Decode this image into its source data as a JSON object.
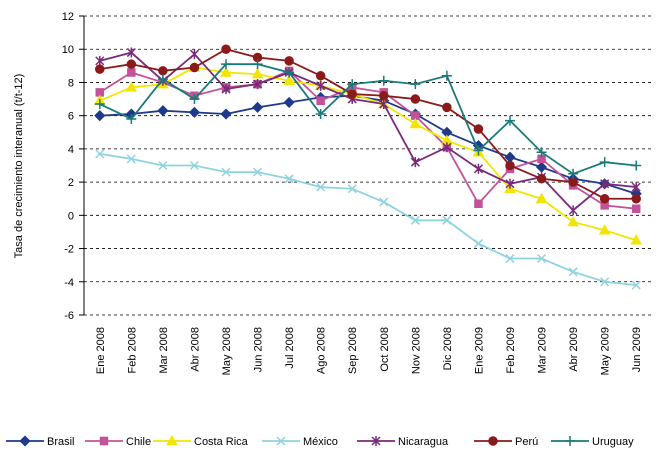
{
  "chart_data": {
    "type": "line",
    "y_label": "Tasa de crecimiento interanual (t/t-12)",
    "categories": [
      "Ene 2008",
      "Feb 2008",
      "Mar 2008",
      "Abr 2008",
      "May 2008",
      "Jun 2008",
      "Jul 2008",
      "Ago 2008",
      "Sep 2008",
      "Oct 2008",
      "Nov 2008",
      "Dic 2008",
      "Ene 2009",
      "Feb 2009",
      "Mar 2009",
      "Abr 2009",
      "May 2009",
      "Jun 2009"
    ],
    "ylim": [
      -6,
      12
    ],
    "yticks": [
      -6,
      -4,
      -2,
      0,
      2,
      4,
      6,
      8,
      10,
      12
    ],
    "grid": true,
    "legend": "bottom",
    "series": [
      {
        "name": "Brasil",
        "color": "#1f3a8a",
        "marker": "diamond",
        "values": [
          6.0,
          6.1,
          6.3,
          6.2,
          6.1,
          6.5,
          6.8,
          7.1,
          7.2,
          6.9,
          6.1,
          5.0,
          4.2,
          3.5,
          2.9,
          2.2,
          1.9,
          1.3
        ]
      },
      {
        "name": "Chile",
        "color": "#c4529a",
        "marker": "square",
        "values": [
          7.4,
          8.6,
          8.0,
          7.2,
          7.7,
          7.9,
          8.7,
          6.9,
          7.7,
          7.4,
          6.0,
          4.1,
          0.7,
          2.8,
          3.4,
          1.8,
          0.6,
          0.4
        ]
      },
      {
        "name": "Costa Rica",
        "color": "#f2e600",
        "marker": "triangle",
        "values": [
          6.9,
          7.7,
          7.9,
          8.9,
          8.6,
          8.5,
          8.1,
          7.8,
          7.3,
          6.7,
          5.5,
          4.5,
          3.8,
          1.6,
          1.0,
          -0.4,
          -0.9,
          -1.5
        ]
      },
      {
        "name": "México",
        "color": "#8fd3e0",
        "marker": "x",
        "values": [
          3.7,
          3.4,
          3.0,
          3.0,
          2.6,
          2.6,
          2.2,
          1.7,
          1.6,
          0.8,
          -0.3,
          -0.3,
          -1.7,
          -2.6,
          -2.6,
          -3.4,
          -4.0,
          -4.2
        ]
      },
      {
        "name": "Nicaragua",
        "color": "#7a2a7a",
        "marker": "star",
        "values": [
          9.3,
          9.8,
          8.1,
          9.7,
          7.6,
          7.9,
          8.6,
          7.8,
          7.0,
          6.7,
          3.2,
          4.1,
          2.8,
          1.9,
          2.3,
          0.3,
          1.9,
          1.7
        ]
      },
      {
        "name": "Perú",
        "color": "#8b1a1a",
        "marker": "circle",
        "values": [
          8.8,
          9.1,
          8.7,
          8.9,
          10.0,
          9.5,
          9.3,
          8.4,
          7.3,
          7.2,
          7.0,
          6.5,
          5.2,
          3.0,
          2.2,
          2.0,
          1.0,
          1.0
        ]
      },
      {
        "name": "Uruguay",
        "color": "#1a7a7a",
        "marker": "plus",
        "values": [
          6.7,
          5.8,
          8.2,
          7.0,
          9.1,
          9.1,
          8.6,
          6.1,
          7.9,
          8.1,
          7.9,
          8.4,
          3.9,
          5.7,
          3.8,
          2.5,
          3.2,
          3.0
        ]
      }
    ]
  }
}
